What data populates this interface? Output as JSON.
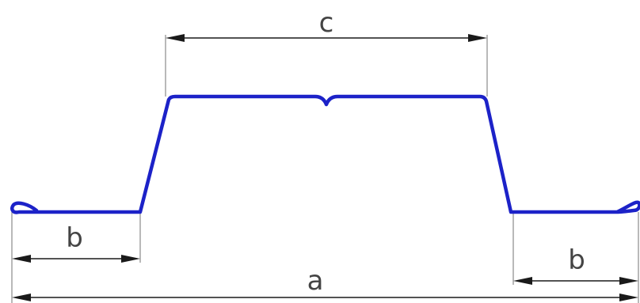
{
  "labels": {
    "top_width": "c",
    "left_flange": "b",
    "right_flange": "b",
    "overall_width": "a"
  },
  "colors": {
    "profile": "#1c22c8",
    "dimension": "#1a1a1a",
    "extension": "#8a8a8a",
    "background": "#ffffff"
  }
}
